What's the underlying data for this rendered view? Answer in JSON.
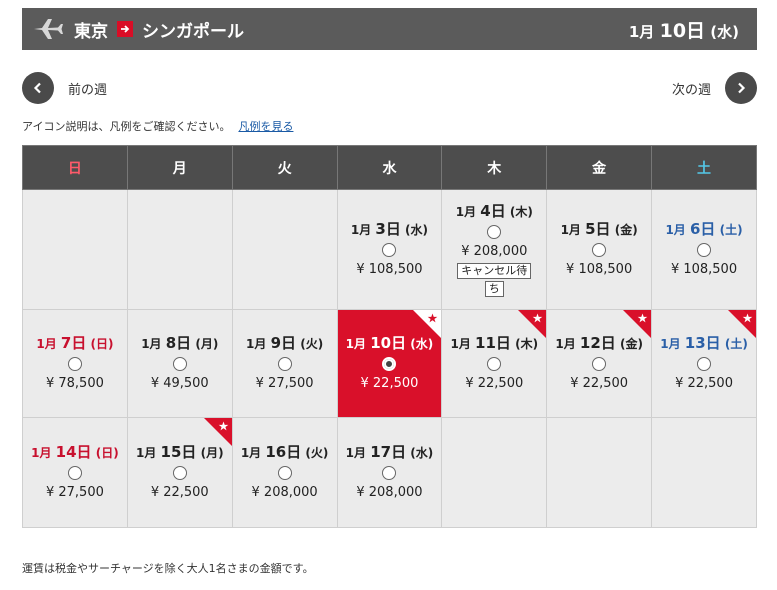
{
  "header": {
    "from": "東京",
    "to": "シンガポール",
    "date_month": "1月",
    "date_day": "10日",
    "date_weekday": "(水)"
  },
  "nav": {
    "prev_label": "前の週",
    "next_label": "次の週"
  },
  "notice": {
    "text": "アイコン説明は、凡例をご確認ください。",
    "link": "凡例を見る"
  },
  "weekdays": [
    "日",
    "月",
    "火",
    "水",
    "木",
    "金",
    "土"
  ],
  "weeks": [
    [
      null,
      null,
      null,
      {
        "month": "1月",
        "day": "3日",
        "weekday": "(水)",
        "price": "¥ 108,500"
      },
      {
        "month": "1月",
        "day": "4日",
        "weekday": "(木)",
        "price": "¥ 208,000",
        "wait1": "キャンセル待",
        "wait2": "ち"
      },
      {
        "month": "1月",
        "day": "5日",
        "weekday": "(金)",
        "price": "¥ 108,500"
      },
      {
        "month": "1月",
        "day": "6日",
        "weekday": "(土)",
        "price": "¥ 108,500"
      }
    ],
    [
      {
        "month": "1月",
        "day": "7日",
        "weekday": "(日)",
        "price": "¥ 78,500"
      },
      {
        "month": "1月",
        "day": "8日",
        "weekday": "(月)",
        "price": "¥ 49,500"
      },
      {
        "month": "1月",
        "day": "9日",
        "weekday": "(火)",
        "price": "¥ 27,500"
      },
      {
        "month": "1月",
        "day": "10日",
        "weekday": "(水)",
        "price": "¥ 22,500"
      },
      {
        "month": "1月",
        "day": "11日",
        "weekday": "(木)",
        "price": "¥ 22,500"
      },
      {
        "month": "1月",
        "day": "12日",
        "weekday": "(金)",
        "price": "¥ 22,500"
      },
      {
        "month": "1月",
        "day": "13日",
        "weekday": "(土)",
        "price": "¥ 22,500"
      }
    ],
    [
      {
        "month": "1月",
        "day": "14日",
        "weekday": "(日)",
        "price": "¥ 27,500"
      },
      {
        "month": "1月",
        "day": "15日",
        "weekday": "(月)",
        "price": "¥ 22,500"
      },
      {
        "month": "1月",
        "day": "16日",
        "weekday": "(火)",
        "price": "¥ 208,000"
      },
      {
        "month": "1月",
        "day": "17日",
        "weekday": "(水)",
        "price": "¥ 208,000"
      },
      null,
      null,
      null
    ]
  ],
  "footer": "運賃は税金やサーチャージを除く大人1名さまの金額です。",
  "colors": {
    "header_bg": "#5b5b5b",
    "selected_bg": "#d9102a",
    "sunday": "#c8102e",
    "saturday": "#2a5fa7"
  }
}
